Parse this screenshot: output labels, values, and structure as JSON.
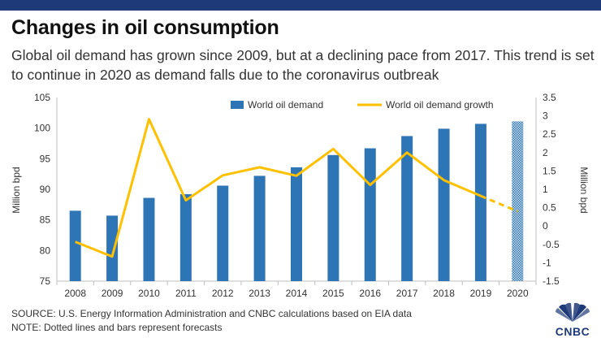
{
  "header": {
    "title": "Changes in oil consumption",
    "subtitle": "Global oil demand has grown since 2009, but at a declining pace from 2017. This trend is set to continue in 2020 as demand falls due to the coronavirus outbreak"
  },
  "footer": {
    "source": "SOURCE: U.S. Energy Information Administration and CNBC calculations based on EIA data",
    "note": "NOTE: Dotted lines and bars represent forecasts"
  },
  "logo": {
    "text": "CNBC",
    "icon": "peacock-icon"
  },
  "colors": {
    "bar": "#2e75b6",
    "line": "#ffc000",
    "topbar": "#1f3a78"
  },
  "chart_data": {
    "type": "bar",
    "categories": [
      "2008",
      "2009",
      "2010",
      "2011",
      "2012",
      "2013",
      "2014",
      "2015",
      "2016",
      "2017",
      "2018",
      "2019",
      "2020"
    ],
    "forecast_categories": [
      "2020"
    ],
    "ylabel": "Million bpd",
    "y2label": "Million bpd",
    "ylim": [
      75,
      105
    ],
    "y2lim": [
      -1.5,
      3.5
    ],
    "yticks": [
      "75",
      "80",
      "85",
      "90",
      "95",
      "100",
      "105"
    ],
    "y2ticks": [
      "-1.5",
      "-1",
      "-0.5",
      "0",
      "0.5",
      "1",
      "1.5",
      "2",
      "2.5",
      "3",
      "3.5"
    ],
    "legend_position": "top",
    "grid": false,
    "series": [
      {
        "name": "World oil demand",
        "type": "bar",
        "axis": "left",
        "values": [
          86.5,
          85.7,
          88.6,
          89.2,
          90.6,
          92.2,
          93.6,
          95.6,
          96.7,
          98.7,
          99.9,
          100.7,
          101.1
        ]
      },
      {
        "name": "World oil demand growth",
        "type": "line",
        "axis": "right",
        "values": [
          -0.43,
          -0.83,
          2.91,
          0.7,
          1.38,
          1.6,
          1.37,
          2.1,
          1.12,
          2.0,
          1.25,
          0.82,
          0.4
        ]
      }
    ]
  }
}
